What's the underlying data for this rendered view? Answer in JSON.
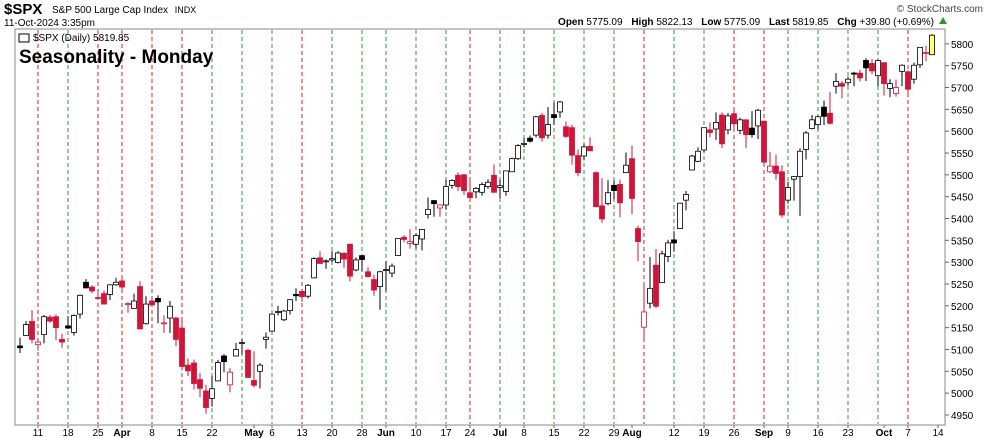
{
  "header": {
    "symbol": "$SPX",
    "name": "S&P 500 Large Cap Index",
    "exchange": "INDX",
    "date": "11-Oct-2024 3:35pm",
    "open_label": "Open",
    "open": "5775.09",
    "high_label": "High",
    "high": "5822.13",
    "low_label": "Low",
    "low": "5775.09",
    "last_label": "Last",
    "last": "5819.85",
    "chg_label": "Chg",
    "chg": "+39.80 (+0.69%)",
    "credit": "© StockCharts.com"
  },
  "chart_data": {
    "type": "candlestick",
    "title": "Seasonality - Monday",
    "legend": "$SPX (Daily) 5819.85",
    "categories": [
      null,
      null,
      null,
      "11",
      null,
      null,
      null,
      null,
      "18",
      null,
      null,
      null,
      null,
      "25",
      null,
      null,
      null,
      "Apr",
      null,
      null,
      null,
      null,
      "8",
      null,
      null,
      null,
      null,
      "15",
      null,
      null,
      null,
      null,
      "22",
      null,
      null,
      null,
      null,
      null,
      null,
      "May",
      null,
      null,
      "6",
      null,
      null,
      null,
      null,
      "13",
      null,
      null,
      null,
      null,
      "20",
      null,
      null,
      null,
      null,
      "28",
      null,
      null,
      null,
      "Jun",
      null,
      null,
      null,
      null,
      "10",
      null,
      null,
      null,
      null,
      "17",
      null,
      null,
      null,
      "24",
      null,
      null,
      null,
      null,
      "Jul",
      null,
      null,
      null,
      "8",
      null,
      null,
      null,
      null,
      "15",
      null,
      null,
      null,
      null,
      "22",
      null,
      null,
      null,
      null,
      "29",
      null,
      null,
      "Aug",
      null,
      null,
      null,
      null,
      null,
      null,
      "12",
      null,
      null,
      null,
      null,
      "19",
      null,
      null,
      null,
      null,
      "26",
      null,
      null,
      null,
      null,
      "Sep",
      null,
      null,
      null,
      "9",
      null,
      null,
      null,
      null,
      "16",
      null,
      null,
      null,
      null,
      "23",
      null,
      null,
      null,
      null,
      null,
      "Oct",
      null,
      null,
      null,
      "7",
      null,
      null,
      null,
      null,
      "14"
    ],
    "open": [
      5108,
      5132,
      5164,
      5111,
      5134,
      5174,
      5175,
      5123,
      5154,
      5139,
      5181,
      5254,
      5243,
      5219,
      5228,
      5226,
      5248,
      5257,
      5204,
      5194,
      5244,
      5159,
      5211,
      5217,
      5161,
      5172,
      5172,
      5149,
      5064,
      5069,
      5031,
      5005,
      4988,
      5028,
      5085,
      5019,
      5085,
      5114,
      5098,
      5029,
      5050,
      5123,
      5142,
      5187,
      5168,
      5189,
      5226,
      5233,
      5222,
      5264,
      5310,
      5303,
      5305,
      5299,
      5320,
      5341,
      5282,
      5315,
      5278,
      5260,
      5244,
      5283,
      5275,
      5315,
      5357,
      5343,
      5341,
      5353,
      5409,
      5441,
      5424,
      5431,
      5476,
      5499,
      5500,
      5459,
      5461,
      5460,
      5473,
      5499,
      5471,
      5462,
      5507,
      5537,
      5572,
      5584,
      5591,
      5636,
      5591,
      5638,
      5644,
      5610,
      5608,
      5544,
      5543,
      5565,
      5505,
      5429,
      5434,
      5476,
      5478,
      5505,
      5537,
      5377,
      5151,
      5206,
      5293,
      5253,
      5313,
      5351,
      5377,
      5442,
      5511,
      5531,
      5557,
      5603,
      5605,
      5637,
      5603,
      5640,
      5602,
      5626,
      5607,
      5612,
      5623,
      5507,
      5520,
      5507,
      5442,
      5490,
      5496,
      5558,
      5606,
      5615,
      5655,
      5641,
      5703,
      5709,
      5711,
      5733,
      5733,
      5762,
      5755,
      5727,
      5757,
      5698,
      5686,
      5737,
      5736,
      5719,
      5752,
      5778,
      5775.09,
      null
    ],
    "high": [
      5127,
      5165,
      5190,
      5124,
      5179,
      5179,
      5180,
      5136,
      5176,
      5180,
      5226,
      5261,
      5247,
      5229,
      5235,
      5249,
      5264,
      5263,
      5208,
      5228,
      5256,
      5222,
      5219,
      5224,
      5178,
      5211,
      5175,
      5168,
      5079,
      5077,
      5046,
      5019,
      5039,
      5076,
      5089,
      5057,
      5115,
      5124,
      5102,
      5096,
      5069,
      5139,
      5181,
      5200,
      5191,
      5215,
      5240,
      5238,
      5250,
      5311,
      5325,
      5306,
      5325,
      5325,
      5323,
      5342,
      5311,
      5315,
      5288,
      5271,
      5280,
      5303,
      5297,
      5354,
      5362,
      5376,
      5366,
      5376,
      5448,
      5442,
      5432,
      5489,
      5490,
      5506,
      5502,
      5490,
      5472,
      5483,
      5490,
      5524,
      5489,
      5510,
      5539,
      5570,
      5584,
      5590,
      5635,
      5642,
      5655,
      5666,
      5669,
      5622,
      5615,
      5558,
      5570,
      5586,
      5508,
      5492,
      5488,
      5487,
      5489,
      5551,
      5567,
      5383,
      5250,
      5312,
      5330,
      5326,
      5351,
      5371,
      5436,
      5463,
      5546,
      5563,
      5608,
      5620,
      5643,
      5643,
      5642,
      5651,
      5631,
      5627,
      5646,
      5651,
      5623,
      5552,
      5546,
      5522,
      5484,
      5497,
      5561,
      5600,
      5637,
      5636,
      5670,
      5690,
      5733,
      5715,
      5725,
      5736,
      5741,
      5767,
      5765,
      5765,
      5757,
      5719,
      5718,
      5753,
      5739,
      5757,
      5792,
      5796,
      5822.13,
      null
    ],
    "low": [
      5092,
      5132,
      5114,
      5097,
      5114,
      5161,
      5121,
      5104,
      5147,
      5132,
      5171,
      5240,
      5229,
      5216,
      5203,
      5213,
      5246,
      5229,
      5184,
      5194,
      5146,
      5157,
      5198,
      5160,
      5138,
      5138,
      5108,
      5052,
      5039,
      5008,
      4991,
      4953,
      4969,
      5027,
      5048,
      5002,
      5084,
      5089,
      5035,
      5013,
      5011,
      5102,
      5142,
      5178,
      5165,
      5180,
      5211,
      5209,
      5217,
      5263,
      5297,
      5285,
      5300,
      5297,
      5287,
      5256,
      5279,
      5279,
      5265,
      5223,
      5191,
      5234,
      5265,
      5315,
      5346,
      5331,
      5331,
      5327,
      5400,
      5404,
      5404,
      5420,
      5468,
      5463,
      5454,
      5447,
      5446,
      5452,
      5468,
      5459,
      5446,
      5452,
      5507,
      5534,
      5563,
      5574,
      5586,
      5576,
      5583,
      5614,
      5631,
      5584,
      5523,
      5497,
      5533,
      5554,
      5426,
      5390,
      5430,
      5444,
      5403,
      5504,
      5410,
      5302,
      5120,
      5194,
      5195,
      5253,
      5300,
      5324,
      5377,
      5419,
      5510,
      5529,
      5551,
      5586,
      5580,
      5561,
      5593,
      5600,
      5593,
      5561,
      5585,
      5582,
      5521,
      5504,
      5489,
      5402,
      5434,
      5441,
      5406,
      5535,
      5604,
      5604,
      5614,
      5615,
      5686,
      5675,
      5704,
      5703,
      5714,
      5715,
      5730,
      5703,
      5681,
      5678,
      5679,
      5703,
      5687,
      5709,
      5745,
      5760,
      5775.09,
      null
    ],
    "close": [
      5104,
      5157,
      5123,
      5117,
      5175,
      5165,
      5150,
      5117,
      5149,
      5178,
      5224,
      5241,
      5234,
      5218,
      5204,
      5248,
      5254,
      5243,
      5205,
      5211,
      5147,
      5204,
      5202,
      5209,
      5161,
      5199,
      5123,
      5061,
      5051,
      5022,
      5011,
      4967,
      5010,
      5070,
      5072,
      5048,
      5100,
      5116,
      5036,
      5018,
      5064,
      5128,
      5181,
      5187,
      5188,
      5214,
      5223,
      5221,
      5247,
      5308,
      5297,
      5303,
      5308,
      5321,
      5307,
      5268,
      5305,
      5306,
      5267,
      5236,
      5278,
      5283,
      5291,
      5354,
      5352,
      5347,
      5361,
      5375,
      5421,
      5434,
      5431,
      5473,
      5487,
      5473,
      5464,
      5448,
      5469,
      5478,
      5483,
      5460,
      5475,
      5509,
      5537,
      5567,
      5572,
      5577,
      5633,
      5585,
      5615,
      5631,
      5667,
      5588,
      5545,
      5505,
      5564,
      5555,
      5427,
      5399,
      5459,
      5464,
      5436,
      5522,
      5446,
      5347,
      5186,
      5240,
      5199,
      5319,
      5344,
      5344,
      5435,
      5455,
      5543,
      5554,
      5608,
      5597,
      5620,
      5571,
      5635,
      5617,
      5626,
      5592,
      5592,
      5648,
      5529,
      5520,
      5503,
      5408,
      5471,
      5496,
      5554,
      5596,
      5626,
      5633,
      5634,
      5618,
      5714,
      5703,
      5719,
      5732,
      5722,
      5745,
      5738,
      5762,
      5709,
      5709,
      5700,
      5751,
      5696,
      5751,
      5792,
      5780,
      5819.85,
      null
    ],
    "monday_lines": [
      3,
      8,
      13,
      17,
      22,
      27,
      32,
      37,
      42,
      47,
      52,
      57,
      61,
      66,
      71,
      75,
      80,
      84,
      89,
      94,
      99,
      104,
      109,
      114,
      119,
      124,
      128,
      133,
      138,
      143,
      148
    ],
    "ylim": [
      4927,
      5834
    ],
    "yticks": [
      4950,
      5000,
      5050,
      5100,
      5150,
      5200,
      5250,
      5300,
      5350,
      5400,
      5450,
      5500,
      5550,
      5600,
      5650,
      5700,
      5750,
      5800
    ],
    "up_color": "#000000",
    "down_color": "#d2143a",
    "last_color": "#ffff80",
    "line_up_color": "#2e9a2e",
    "line_down_color": "#d81e1e",
    "title_color": "#1010d0"
  }
}
